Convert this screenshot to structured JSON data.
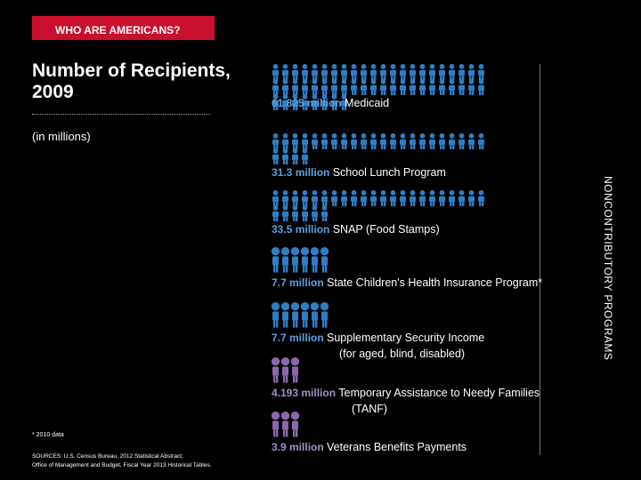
{
  "header": {
    "section": "WHO ARE AMERICANS?"
  },
  "chart_data": {
    "type": "bar",
    "title_lines": [
      "Number of Recipients,",
      "2009"
    ],
    "unit": "(in millions)",
    "side_label": "NONCONTRIBUTORY PROGRAMS",
    "categories": [
      "Medicaid",
      "School Lunch Program",
      "SNAP (Food Stamps)",
      "State Children's Health Insurance Program*",
      "Supplementary Security Income",
      "Temporary Assistance to Needy Families",
      "Veterans Benefits Payments"
    ],
    "sublabels": [
      "",
      "",
      "",
      "",
      "(for aged, blind, disabled)",
      "(TANF)",
      ""
    ],
    "value_labels": [
      "61.825 million",
      "31.3 million",
      "33.5 million",
      "7.7 million",
      "7.7 million",
      "4.193 million",
      "3.9 million"
    ],
    "values": [
      61.825,
      31.3,
      33.5,
      7.7,
      7.7,
      4.193,
      3.9
    ],
    "colors": [
      "#2f7ec4",
      "#2f7ec4",
      "#2f7ec4",
      "#2f7ec4",
      "#2f7ec4",
      "#8b68ad",
      "#8b68ad"
    ],
    "value_colors": [
      "#5aa0e0",
      "#5aa0e0",
      "#5aa0e0",
      "#5aa0e0",
      "#5aa0e0",
      "#a98cc8",
      "#a98cc8"
    ]
  },
  "footnote": "* 2010 data",
  "sources": [
    "SOURCES: U.S. Census Bureau, 2012 Statistical Abstract;",
    "Office of Management and Budget, Fiscal Year 2013 Historical Tables."
  ]
}
